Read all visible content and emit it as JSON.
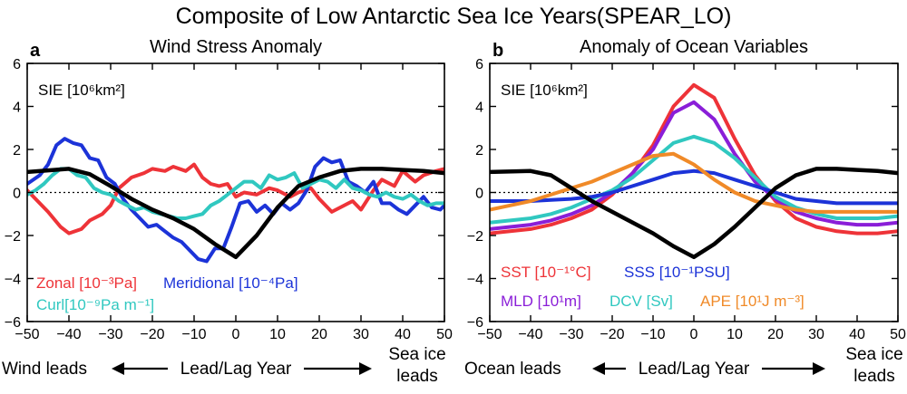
{
  "figure": {
    "title": "Composite of Low Antarctic Sea Ice Years(SPEAR_LO)"
  },
  "colors": {
    "sie": "#000000",
    "zonal": "#ee3338",
    "meridional": "#1c33d8",
    "curl": "#30c8c0",
    "sst": "#ee3338",
    "sss": "#1c33d8",
    "mld": "#8a1ed8",
    "dcv": "#30c8c0",
    "ape": "#f08a28"
  },
  "chart_data": [
    {
      "panel_letter": "a",
      "title": "Wind Stress Anomaly",
      "type": "line",
      "sie_label": "SIE [10⁶km²]",
      "xlim": [
        -50,
        50
      ],
      "ylim": [
        -6,
        6
      ],
      "xticks": [
        -50,
        -40,
        -30,
        -20,
        -10,
        0,
        10,
        20,
        30,
        40,
        50
      ],
      "yticks": [
        -6,
        -4,
        -2,
        0,
        2,
        4,
        6
      ],
      "x_axis_label": "Lead/Lag Year",
      "left_arrow_label": "Wind leads",
      "right_arrow_label_line1": "Sea ice",
      "right_arrow_label_line2": "leads",
      "legend": [
        {
          "key": "zonal",
          "label": "Zonal [10⁻³Pa]",
          "color": "#ee3338"
        },
        {
          "key": "meridional",
          "label": "Meridional [10⁻⁴Pa]",
          "color": "#1c33d8"
        },
        {
          "key": "curl",
          "label": "Curl[10⁻⁹Pa m⁻¹]",
          "color": "#30c8c0"
        }
      ],
      "series": [
        {
          "key": "sie",
          "name": "SIE",
          "color": "#000000",
          "x": [
            -50,
            -40,
            -35,
            -30,
            -25,
            -20,
            -15,
            -10,
            -5,
            0,
            5,
            10,
            15,
            20,
            25,
            30,
            35,
            40,
            45,
            50
          ],
          "values": [
            0.95,
            1.1,
            0.85,
            0.3,
            -0.3,
            -0.8,
            -1.2,
            -1.7,
            -2.4,
            -3.0,
            -2.0,
            -0.7,
            0.3,
            0.7,
            1.0,
            1.1,
            1.1,
            1.05,
            1.0,
            0.9
          ]
        },
        {
          "key": "zonal",
          "name": "Zonal",
          "color": "#ee3338",
          "x": [
            -50,
            -45,
            -42,
            -40,
            -37,
            -35,
            -32,
            -30,
            -28,
            -25,
            -22,
            -20,
            -17,
            -15,
            -12,
            -10,
            -8,
            -6,
            -4,
            -2,
            0,
            2,
            5,
            8,
            10,
            13,
            15,
            18,
            20,
            23,
            25,
            28,
            30,
            33,
            35,
            38,
            40,
            43,
            45,
            48,
            50
          ],
          "values": [
            0.1,
            -0.9,
            -1.6,
            -1.9,
            -1.7,
            -1.3,
            -1.0,
            -0.6,
            0.2,
            0.7,
            0.9,
            1.1,
            1.0,
            1.2,
            1.0,
            1.3,
            0.7,
            0.4,
            0.3,
            0.4,
            -0.2,
            0.0,
            -0.1,
            0.2,
            0.1,
            -0.2,
            0.0,
            0.2,
            -0.3,
            -0.9,
            -0.7,
            -0.4,
            -0.8,
            0.1,
            0.6,
            0.3,
            1.0,
            0.5,
            0.8,
            1.0,
            1.1
          ]
        },
        {
          "key": "meridional",
          "name": "Meridional",
          "color": "#1c33d8",
          "x": [
            -50,
            -47,
            -45,
            -43,
            -41,
            -39,
            -37,
            -35,
            -33,
            -31,
            -29,
            -27,
            -25,
            -23,
            -21,
            -19,
            -17,
            -15,
            -13,
            -11,
            -9,
            -7,
            -5,
            -3,
            -1,
            1,
            3,
            5,
            7,
            9,
            11,
            13,
            15,
            17,
            19,
            21,
            23,
            25,
            27,
            29,
            31,
            33,
            35,
            37,
            39,
            41,
            43,
            45,
            47,
            49,
            50
          ],
          "values": [
            0.4,
            0.8,
            1.3,
            2.2,
            2.5,
            2.3,
            2.2,
            1.6,
            1.5,
            0.7,
            0.4,
            -0.3,
            -0.8,
            -1.2,
            -1.6,
            -1.5,
            -1.8,
            -2.1,
            -2.3,
            -2.7,
            -3.1,
            -3.2,
            -2.6,
            -2.6,
            -1.6,
            -0.5,
            -0.4,
            -0.9,
            -0.6,
            -1.0,
            -0.5,
            -0.8,
            -0.5,
            0.1,
            1.2,
            1.6,
            1.4,
            1.5,
            0.5,
            0.3,
            0.0,
            0.5,
            -0.5,
            -0.5,
            -0.8,
            -1.0,
            -0.6,
            -0.2,
            -0.7,
            -0.8,
            -0.6
          ]
        },
        {
          "key": "curl",
          "name": "Curl",
          "color": "#30c8c0",
          "x": [
            -50,
            -48,
            -46,
            -44,
            -42,
            -40,
            -38,
            -36,
            -34,
            -32,
            -30,
            -28,
            -26,
            -24,
            -22,
            -20,
            -18,
            -16,
            -14,
            -12,
            -10,
            -8,
            -6,
            -4,
            -2,
            0,
            2,
            4,
            6,
            8,
            10,
            12,
            14,
            16,
            18,
            20,
            22,
            24,
            26,
            28,
            30,
            32,
            34,
            36,
            38,
            40,
            42,
            44,
            46,
            48,
            50
          ],
          "values": [
            -0.1,
            0.1,
            0.4,
            0.8,
            1.1,
            1.1,
            0.8,
            0.7,
            0.2,
            0.0,
            -0.1,
            -0.4,
            -0.6,
            -0.8,
            -0.7,
            -0.9,
            -1.0,
            -1.1,
            -1.2,
            -1.2,
            -1.1,
            -1.0,
            -0.6,
            -0.4,
            -0.1,
            0.2,
            0.5,
            0.5,
            0.2,
            0.8,
            0.6,
            0.7,
            0.9,
            0.2,
            0.4,
            0.6,
            0.5,
            0.2,
            0.6,
            0.2,
            0.1,
            -0.1,
            -0.2,
            0.0,
            -0.2,
            -0.3,
            -0.1,
            -0.4,
            -0.6,
            -0.5,
            -0.5
          ]
        }
      ]
    },
    {
      "panel_letter": "b",
      "title": "Anomaly of Ocean Variables",
      "type": "line",
      "sie_label": "SIE [10⁶km²]",
      "xlim": [
        -50,
        50
      ],
      "ylim": [
        -6,
        6
      ],
      "xticks": [
        -50,
        -40,
        -30,
        -20,
        -10,
        0,
        10,
        20,
        30,
        40,
        50
      ],
      "yticks": [
        -6,
        -4,
        -2,
        0,
        2,
        4,
        6
      ],
      "x_axis_label": "Lead/Lag Year",
      "left_arrow_label": "Ocean leads",
      "right_arrow_label_line1": "Sea ice",
      "right_arrow_label_line2": "leads",
      "legend": [
        {
          "key": "sst",
          "label": "SST [10⁻¹°C]",
          "color": "#ee3338"
        },
        {
          "key": "sss",
          "label": "SSS [10⁻¹PSU]",
          "color": "#1c33d8"
        },
        {
          "key": "mld",
          "label": "MLD [10¹m]",
          "color": "#8a1ed8"
        },
        {
          "key": "dcv",
          "label": "DCV [Sv]",
          "color": "#30c8c0"
        },
        {
          "key": "ape",
          "label": "APE [10¹J m⁻³]",
          "color": "#f08a28"
        }
      ],
      "series": [
        {
          "key": "sie",
          "name": "SIE",
          "color": "#000000",
          "x": [
            -50,
            -40,
            -35,
            -30,
            -25,
            -20,
            -15,
            -10,
            -5,
            0,
            5,
            10,
            15,
            20,
            25,
            30,
            35,
            40,
            45,
            50
          ],
          "values": [
            0.95,
            1.0,
            0.8,
            0.2,
            -0.4,
            -0.9,
            -1.4,
            -1.9,
            -2.5,
            -3.0,
            -2.4,
            -1.6,
            -0.7,
            0.2,
            0.8,
            1.1,
            1.1,
            1.05,
            1.0,
            0.9
          ]
        },
        {
          "key": "sst",
          "name": "SST",
          "color": "#ee3338",
          "x": [
            -50,
            -45,
            -40,
            -35,
            -30,
            -25,
            -20,
            -15,
            -10,
            -5,
            0,
            5,
            10,
            15,
            20,
            25,
            30,
            35,
            40,
            45,
            50
          ],
          "values": [
            -1.9,
            -1.8,
            -1.7,
            -1.5,
            -1.2,
            -0.8,
            -0.1,
            0.9,
            2.2,
            4.0,
            5.0,
            4.4,
            2.5,
            0.8,
            -0.4,
            -1.2,
            -1.6,
            -1.8,
            -1.9,
            -1.9,
            -1.8
          ]
        },
        {
          "key": "mld",
          "name": "MLD",
          "color": "#8a1ed8",
          "x": [
            -50,
            -45,
            -40,
            -35,
            -30,
            -25,
            -20,
            -15,
            -10,
            -5,
            0,
            5,
            10,
            15,
            20,
            25,
            30,
            35,
            40,
            45,
            50
          ],
          "values": [
            -1.7,
            -1.6,
            -1.5,
            -1.3,
            -1.0,
            -0.6,
            0.0,
            0.9,
            2.0,
            3.7,
            4.2,
            3.4,
            1.8,
            0.5,
            -0.3,
            -0.9,
            -1.2,
            -1.4,
            -1.5,
            -1.5,
            -1.4
          ]
        },
        {
          "key": "dcv",
          "name": "DCV",
          "color": "#30c8c0",
          "x": [
            -50,
            -45,
            -40,
            -35,
            -30,
            -25,
            -20,
            -15,
            -10,
            -5,
            0,
            5,
            10,
            15,
            20,
            25,
            30,
            35,
            40,
            45,
            50
          ],
          "values": [
            -1.4,
            -1.3,
            -1.2,
            -1.0,
            -0.7,
            -0.3,
            0.1,
            0.7,
            1.5,
            2.3,
            2.6,
            2.3,
            1.6,
            0.7,
            -0.2,
            -0.7,
            -1.0,
            -1.2,
            -1.2,
            -1.2,
            -1.1
          ]
        },
        {
          "key": "sss",
          "name": "SSS",
          "color": "#1c33d8",
          "x": [
            -50,
            -45,
            -40,
            -35,
            -30,
            -25,
            -20,
            -15,
            -10,
            -5,
            0,
            5,
            10,
            15,
            20,
            25,
            30,
            35,
            40,
            45,
            50
          ],
          "values": [
            -0.4,
            -0.4,
            -0.4,
            -0.35,
            -0.3,
            -0.2,
            0.0,
            0.3,
            0.6,
            0.9,
            1.0,
            0.9,
            0.6,
            0.3,
            0.0,
            -0.3,
            -0.4,
            -0.5,
            -0.5,
            -0.5,
            -0.5
          ]
        },
        {
          "key": "ape",
          "name": "APE",
          "color": "#f08a28",
          "x": [
            -50,
            -45,
            -40,
            -35,
            -30,
            -25,
            -20,
            -15,
            -10,
            -5,
            0,
            5,
            10,
            15,
            20,
            25,
            30,
            35,
            40,
            45,
            50
          ],
          "values": [
            -0.8,
            -0.6,
            -0.4,
            -0.1,
            0.2,
            0.5,
            0.9,
            1.3,
            1.7,
            1.8,
            1.3,
            0.6,
            0.0,
            -0.4,
            -0.6,
            -0.8,
            -0.9,
            -0.9,
            -0.9,
            -0.9,
            -0.9
          ]
        }
      ]
    }
  ]
}
